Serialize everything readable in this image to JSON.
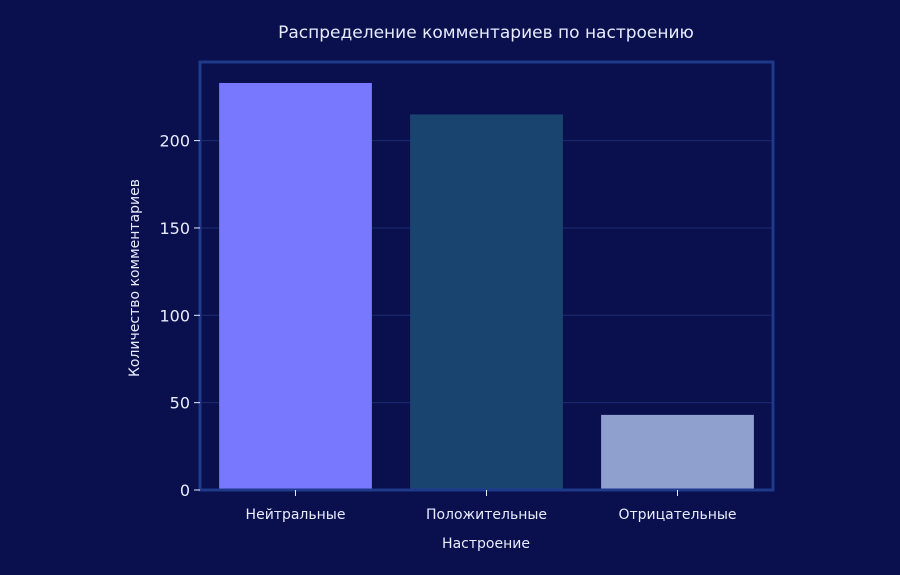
{
  "chart_data": {
    "type": "bar",
    "title": "Распределение комментариев по настроению",
    "xlabel": "Настроение",
    "ylabel": "Количество комментариев",
    "categories": [
      "Нейтральные",
      "Положительные",
      "Отрицательные"
    ],
    "values": [
      233,
      215,
      43
    ],
    "colors": [
      "#7878ff",
      "#1a4470",
      "#8f9fce"
    ],
    "ylim": [
      0,
      245
    ],
    "yticks": [
      0,
      50,
      100,
      150,
      200
    ],
    "grid": true,
    "legend": "none",
    "colors_theme": {
      "background": "#0a0f4e",
      "frame": "#1e3a8a",
      "grid": "#1e2b72",
      "text": "#e8ecff"
    }
  }
}
